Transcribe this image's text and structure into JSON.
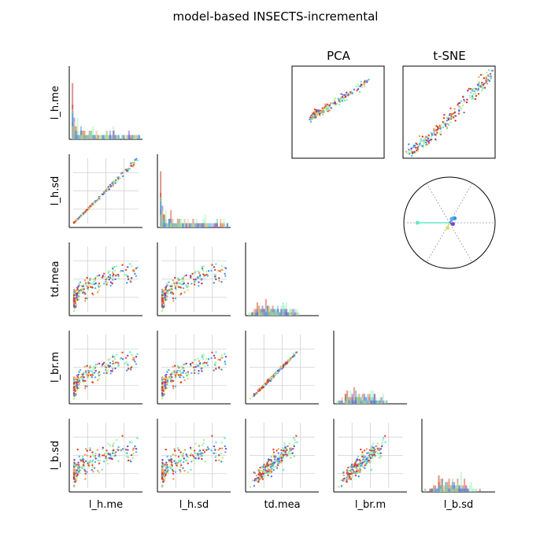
{
  "title": "model-based INSECTS-incremental",
  "variables": [
    "l_h.me",
    "l_h.sd",
    "td.mea",
    "l_br.m",
    "l_b.sd"
  ],
  "panel_titles": {
    "pca": "PCA",
    "tsne": "t-SNE"
  },
  "palette": [
    "#e8432a",
    "#c0392b",
    "#f39c5a",
    "#b8f0a0",
    "#9df5b0",
    "#62e8c8",
    "#3a8ef0",
    "#7b3fd6",
    "#5aaef0",
    "#d4e46a"
  ],
  "chart_data": {
    "type": "scatter-matrix",
    "layout": "lower-triangle pairwise scatter plots with histograms on the diagonal; PCA and t-SNE projections plus loading circle in the upper-right",
    "grid": true,
    "variables": [
      "l_h.me",
      "l_h.sd",
      "td.mea",
      "l_br.m",
      "l_b.sd"
    ],
    "diagonal": "histogram",
    "extra_panels": [
      "PCA",
      "t-SNE",
      "correlation circle"
    ],
    "loadings": [
      {
        "angle_deg": 180,
        "length": 0.7,
        "color": "#62e8c8"
      },
      {
        "angle_deg": 40,
        "length": 0.15,
        "color": "#3a8ef0"
      },
      {
        "angle_deg": 60,
        "length": 0.1,
        "color": "#5aaef0"
      },
      {
        "angle_deg": -20,
        "length": 0.08,
        "color": "#7b3fd6"
      },
      {
        "angle_deg": -110,
        "length": 0.12,
        "color": "#d4e46a"
      }
    ]
  }
}
